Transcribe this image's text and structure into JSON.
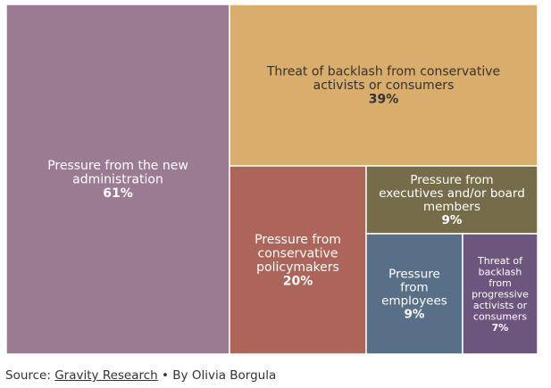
{
  "chart_data": {
    "type": "treemap",
    "title": "",
    "items": [
      {
        "label": [
          "Pressure from the new",
          "administration"
        ],
        "value": 61,
        "value_label": "61%",
        "color": "#9b7b92",
        "text_color": "#ffffff"
      },
      {
        "label": [
          "Threat of backlash from conservative",
          "activists or consumers"
        ],
        "value": 39,
        "value_label": "39%",
        "color": "#d9ad6b",
        "text_color": "#333333"
      },
      {
        "label": [
          "Pressure from",
          "conservative",
          "policymakers"
        ],
        "value": 20,
        "value_label": "20%",
        "color": "#ad6459",
        "text_color": "#ffffff"
      },
      {
        "label": [
          "Pressure from",
          "executives and/or board",
          "members"
        ],
        "value": 9,
        "value_label": "9%",
        "color": "#756d4a",
        "text_color": "#ffffff"
      },
      {
        "label": [
          "Pressure",
          "from",
          "employees"
        ],
        "value": 9,
        "value_label": "9%",
        "color": "#577088",
        "text_color": "#ffffff"
      },
      {
        "label": [
          "Threat of",
          "backlash",
          "from",
          "progressive",
          "activists or",
          "consumers"
        ],
        "value": 7,
        "value_label": "7%",
        "color": "#6d567d",
        "text_color": "#ffffff"
      }
    ]
  },
  "source": {
    "prefix": "Source: ",
    "link_text": "Gravity Research",
    "suffix": " • By Olivia Borgula"
  }
}
